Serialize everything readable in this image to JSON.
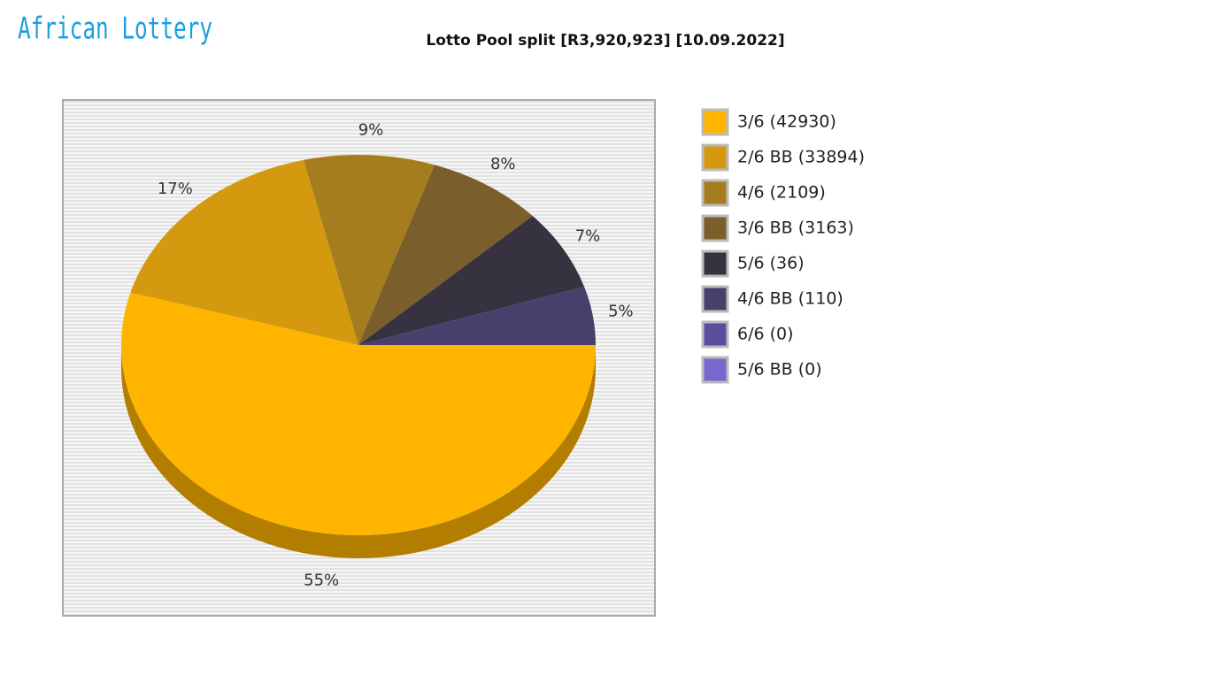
{
  "logo": "African Lottery",
  "chart_data": {
    "type": "pie",
    "title": "Lotto Pool split [R3,920,923] [10.09.2022]",
    "categories": [
      "3/6 (42930)",
      "2/6 BB (33894)",
      "4/6 (2109)",
      "3/6 BB (3163)",
      "5/6 (36)",
      "4/6 BB (110)",
      "6/6 (0)",
      "5/6 BB (0)"
    ],
    "values": [
      55,
      17,
      9,
      8,
      7,
      5,
      0,
      0
    ],
    "value_labels": [
      "55%",
      "17%",
      "9%",
      "8%",
      "7%",
      "5%",
      null,
      null
    ],
    "colors": [
      "#ffb400",
      "#d4990f",
      "#a67d1e",
      "#7a5f2c",
      "#36323f",
      "#483f6d",
      "#5a4f9f",
      "#7867cf"
    ]
  }
}
